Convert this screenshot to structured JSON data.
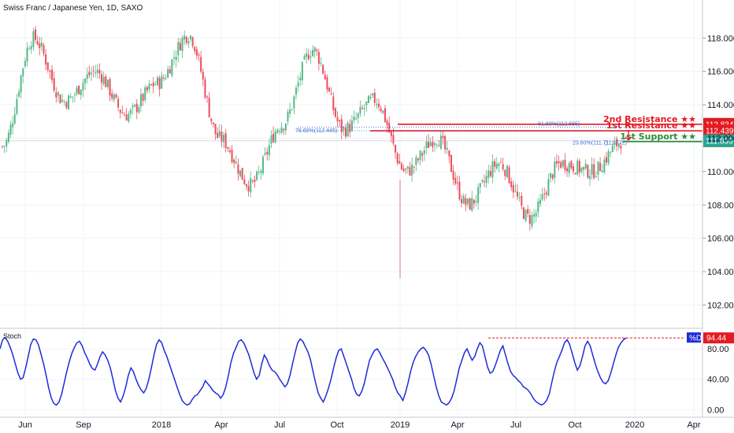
{
  "title": "Swiss Franc / Japanese Yen, 1D, SAXO",
  "colors": {
    "up": "#53b987",
    "down": "#eb4d5c",
    "resistance": "#e31b23",
    "support": "#2e8b3a",
    "stoch": "#1f2bd8",
    "fib": "#3b6fd6"
  },
  "chart_data": [
    {
      "type": "candlestick",
      "symbol": "CHFJPY",
      "interval": "1D",
      "source": "SAXO",
      "y_ticks": [
        "102.000",
        "104.000",
        "106.000",
        "108.000",
        "110.000",
        "112.000",
        "114.000",
        "116.000",
        "118.000"
      ],
      "ylim": [
        100.7,
        119.9
      ],
      "x_ticks": [
        "Jun",
        "Sep",
        "2018",
        "Apr",
        "Jul",
        "Oct",
        "2019",
        "Apr",
        "Jul",
        "Oct",
        "2020",
        "Apr"
      ],
      "key_points": [
        {
          "date": "2017-06",
          "close": 111.5
        },
        {
          "date": "2017-07",
          "close": 118.0
        },
        {
          "date": "2017-08",
          "close": 114.2
        },
        {
          "date": "2017-09",
          "close": 116.0
        },
        {
          "date": "2017-10",
          "close": 113.4
        },
        {
          "date": "2017-12",
          "close": 115.3
        },
        {
          "date": "2018-01",
          "close": 118.2
        },
        {
          "date": "2018-02",
          "close": 112.0
        },
        {
          "date": "2018-03",
          "close": 109.2
        },
        {
          "date": "2018-06",
          "close": 112.8
        },
        {
          "date": "2018-09",
          "close": 117.3
        },
        {
          "date": "2018-10",
          "close": 112.5
        },
        {
          "date": "2018-12",
          "close": 114.3
        },
        {
          "date": "2019-01",
          "close": 110.0
        },
        {
          "date": "2019-03",
          "close": 112.0
        },
        {
          "date": "2019-05",
          "close": 108.0
        },
        {
          "date": "2019-06",
          "close": 110.5
        },
        {
          "date": "2019-08",
          "close": 107.2
        },
        {
          "date": "2019-09",
          "close": 110.5
        },
        {
          "date": "2019-10",
          "close": 110.0
        },
        {
          "date": "2019-12",
          "close": 111.84
        }
      ],
      "levels": [
        {
          "name": "2nd Resistance ★★",
          "value": 112.834,
          "value_label": "112.834",
          "role": "resistance"
        },
        {
          "name": "1st Resistance ★★",
          "value": 112.439,
          "value_label": "112.439",
          "role": "resistance"
        },
        {
          "name": "1st Support ★★",
          "value": 111.796,
          "value_label": "111.796",
          "role": "support"
        }
      ],
      "last_price": {
        "value": 111.839,
        "label": "111.839"
      },
      "fib_labels": [
        "61.80%(112.655)",
        "78.60%(112.445)",
        "23.60%(111.7)",
        "(111.772)"
      ]
    },
    {
      "type": "line",
      "pane": "Stoch",
      "y_ticks": [
        "0.00",
        "40.00",
        "80.00"
      ],
      "ylim": [
        -8,
        104
      ],
      "series": [
        {
          "name": "%D",
          "values": [
            80,
            92,
            95,
            90,
            82,
            72,
            60,
            48,
            40,
            42,
            55,
            70,
            86,
            93,
            92,
            85,
            73,
            60,
            45,
            28,
            15,
            8,
            6,
            10,
            20,
            35,
            50,
            63,
            74,
            82,
            88,
            90,
            84,
            75,
            68,
            60,
            54,
            52,
            60,
            70,
            76,
            72,
            65,
            55,
            40,
            25,
            15,
            10,
            18,
            30,
            45,
            55,
            50,
            40,
            32,
            26,
            22,
            28,
            40,
            55,
            72,
            86,
            92,
            88,
            78,
            70,
            60,
            50,
            40,
            30,
            20,
            12,
            8,
            6,
            8,
            14,
            18,
            20,
            25,
            30,
            38,
            34,
            30,
            25,
            22,
            20,
            15,
            20,
            30,
            45,
            62,
            74,
            82,
            90,
            92,
            88,
            80,
            72,
            60,
            48,
            40,
            45,
            60,
            72,
            66,
            58,
            52,
            50,
            46,
            40,
            35,
            30,
            34,
            45,
            60,
            75,
            88,
            93,
            90,
            83,
            76,
            66,
            50,
            35,
            22,
            15,
            10,
            18,
            28,
            40,
            55,
            68,
            78,
            80,
            70,
            60,
            50,
            40,
            28,
            20,
            18,
            24,
            35,
            50,
            65,
            72,
            78,
            80,
            75,
            68,
            62,
            55,
            48,
            40,
            30,
            22,
            18,
            12,
            22,
            35,
            50,
            62,
            70,
            76,
            80,
            82,
            78,
            72,
            60,
            45,
            30,
            18,
            10,
            8,
            6,
            9,
            15,
            25,
            40,
            55,
            65,
            75,
            80,
            72,
            65,
            70,
            80,
            88,
            84,
            70,
            56,
            48,
            50,
            58,
            68,
            78,
            84,
            72,
            60,
            50,
            45,
            42,
            38,
            35,
            30,
            28,
            25,
            20,
            14,
            10,
            8,
            6,
            8,
            12,
            20,
            35,
            50,
            62,
            70,
            78,
            88,
            92,
            86,
            74,
            62,
            52,
            58,
            70,
            84,
            90,
            84,
            72,
            60,
            50,
            42,
            36,
            34,
            38,
            48,
            60,
            72,
            82,
            88,
            92,
            94.44
          ]
        }
      ],
      "value_label": "94.44",
      "series_tag": "%D"
    }
  ]
}
